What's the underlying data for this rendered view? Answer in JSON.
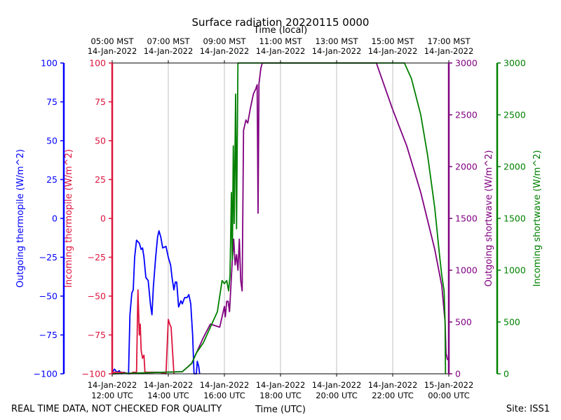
{
  "chart_data": {
    "type": "line",
    "title": "Surface radiation 20220115 0000",
    "top_axis_label": "Time (local)",
    "xlabel": "Time (UTC)",
    "footer_left": "REAL TIME DATA, NOT CHECKED FOR QUALITY",
    "footer_right": "Site: ISS1",
    "x_range": [
      "2022-01-14 12:00",
      "2022-01-15 00:00"
    ],
    "grid": true,
    "bottom_ticks": [
      {
        "x": "2022-01-14 12:00",
        "line1": "14-Jan-2022",
        "line2": "12:00 UTC"
      },
      {
        "x": "2022-01-14 14:00",
        "line1": "14-Jan-2022",
        "line2": "14:00 UTC"
      },
      {
        "x": "2022-01-14 16:00",
        "line1": "14-Jan-2022",
        "line2": "16:00 UTC"
      },
      {
        "x": "2022-01-14 18:00",
        "line1": "14-Jan-2022",
        "line2": "18:00 UTC"
      },
      {
        "x": "2022-01-14 20:00",
        "line1": "14-Jan-2022",
        "line2": "20:00 UTC"
      },
      {
        "x": "2022-01-14 22:00",
        "line1": "14-Jan-2022",
        "line2": "22:00 UTC"
      },
      {
        "x": "2022-01-15 00:00",
        "line1": "15-Jan-2022",
        "line2": "00:00 UTC"
      }
    ],
    "top_ticks": [
      {
        "x": "2022-01-14 12:00",
        "line1": "05:00 MST",
        "line2": "14-Jan-2022"
      },
      {
        "x": "2022-01-14 14:00",
        "line1": "07:00 MST",
        "line2": "14-Jan-2022"
      },
      {
        "x": "2022-01-14 16:00",
        "line1": "09:00 MST",
        "line2": "14-Jan-2022"
      },
      {
        "x": "2022-01-14 18:00",
        "line1": "11:00 MST",
        "line2": "14-Jan-2022"
      },
      {
        "x": "2022-01-14 20:00",
        "line1": "13:00 MST",
        "line2": "14-Jan-2022"
      },
      {
        "x": "2022-01-14 22:00",
        "line1": "15:00 MST",
        "line2": "14-Jan-2022"
      },
      {
        "x": "2022-01-15 00:00",
        "line1": "17:00 MST",
        "line2": "14-Jan-2022"
      }
    ],
    "axes": {
      "outgoing_thermopile": {
        "label": "Outgoing thermopile (W/m^2)",
        "color": "#0000ff",
        "ylim": [
          -100,
          100
        ],
        "ticks": [
          "-100",
          "-75",
          "-50",
          "-25",
          "0",
          "25",
          "50",
          "75",
          "100"
        ]
      },
      "incoming_thermopile": {
        "label": "Incoming thermopile (W/m^2)",
        "color": "#dc143c",
        "ylim": [
          -100,
          100
        ],
        "ticks": [
          "-100",
          "-75",
          "-50",
          "-25",
          "0",
          "25",
          "50",
          "75",
          "100"
        ]
      },
      "outgoing_shortwave": {
        "label": "Outgoing shortwave (W/m^2)",
        "color": "#800080",
        "ylim": [
          0,
          3000
        ],
        "ticks": [
          "0",
          "500",
          "1000",
          "1500",
          "2000",
          "2500",
          "3000"
        ]
      },
      "incoming_shortwave": {
        "label": "Incoming shortwave (W/m^2)",
        "color": "#008000",
        "ylim": [
          0,
          3000
        ],
        "ticks": [
          "0",
          "500",
          "1000",
          "1500",
          "2000",
          "2500",
          "3000"
        ]
      }
    },
    "series": [
      {
        "axis": "outgoing_thermopile",
        "points": [
          [
            "2022-01-14 12:00",
            -99
          ],
          [
            "2022-01-14 12:05",
            -97
          ],
          [
            "2022-01-14 12:10",
            -99
          ],
          [
            "2022-01-14 12:15",
            -98
          ],
          [
            "2022-01-14 12:20",
            -100
          ],
          [
            "2022-01-14 12:25",
            -99
          ],
          [
            "2022-01-14 12:35",
            -100
          ],
          [
            "2022-01-14 12:38",
            -62
          ],
          [
            "2022-01-14 12:42",
            -48
          ],
          [
            "2022-01-14 12:45",
            -46
          ],
          [
            "2022-01-14 12:48",
            -25
          ],
          [
            "2022-01-14 12:52",
            -14
          ],
          [
            "2022-01-14 12:58",
            -16
          ],
          [
            "2022-01-14 13:02",
            -20
          ],
          [
            "2022-01-14 13:05",
            -19
          ],
          [
            "2022-01-14 13:08",
            -25
          ],
          [
            "2022-01-14 13:12",
            -38
          ],
          [
            "2022-01-14 13:17",
            -40
          ],
          [
            "2022-01-14 13:22",
            -56
          ],
          [
            "2022-01-14 13:25",
            -62
          ],
          [
            "2022-01-14 13:28",
            -44
          ],
          [
            "2022-01-14 13:33",
            -25
          ],
          [
            "2022-01-14 13:37",
            -12
          ],
          [
            "2022-01-14 13:40",
            -8
          ],
          [
            "2022-01-14 13:44",
            -12
          ],
          [
            "2022-01-14 13:48",
            -19
          ],
          [
            "2022-01-14 13:55",
            -18
          ],
          [
            "2022-01-14 14:00",
            -25
          ],
          [
            "2022-01-14 14:05",
            -30
          ],
          [
            "2022-01-14 14:08",
            -38
          ],
          [
            "2022-01-14 14:12",
            -46
          ],
          [
            "2022-01-14 14:15",
            -41
          ],
          [
            "2022-01-14 14:18",
            -41
          ],
          [
            "2022-01-14 14:22",
            -57
          ],
          [
            "2022-01-14 14:27",
            -53
          ],
          [
            "2022-01-14 14:30",
            -55
          ],
          [
            "2022-01-14 14:35",
            -51
          ],
          [
            "2022-01-14 14:40",
            -51
          ],
          [
            "2022-01-14 14:44",
            -49
          ],
          [
            "2022-01-14 14:48",
            -55
          ],
          [
            "2022-01-14 14:52",
            -75
          ],
          [
            "2022-01-14 14:55",
            -100
          ],
          [
            "2022-01-14 15:00",
            -100
          ],
          [
            "2022-01-14 15:02",
            -92
          ],
          [
            "2022-01-14 15:05",
            -95
          ],
          [
            "2022-01-14 15:07",
            -100
          ]
        ]
      },
      {
        "axis": "incoming_thermopile",
        "points": [
          [
            "2022-01-14 12:00",
            -99
          ],
          [
            "2022-01-14 12:20",
            -99
          ],
          [
            "2022-01-14 12:38",
            -100
          ],
          [
            "2022-01-14 12:45",
            -99
          ],
          [
            "2022-01-14 12:52",
            -99
          ],
          [
            "2022-01-14 12:55",
            -46
          ],
          [
            "2022-01-14 12:58",
            -75
          ],
          [
            "2022-01-14 13:00",
            -68
          ],
          [
            "2022-01-14 13:02",
            -85
          ],
          [
            "2022-01-14 13:05",
            -90
          ],
          [
            "2022-01-14 13:08",
            -88
          ],
          [
            "2022-01-14 13:10",
            -99
          ],
          [
            "2022-01-14 13:25",
            -99
          ],
          [
            "2022-01-14 13:40",
            -99
          ],
          [
            "2022-01-14 13:55",
            -100
          ],
          [
            "2022-01-14 14:00",
            -65
          ],
          [
            "2022-01-14 14:03",
            -68
          ],
          [
            "2022-01-14 14:06",
            -70
          ],
          [
            "2022-01-14 14:09",
            -85
          ],
          [
            "2022-01-14 14:12",
            -100
          ]
        ]
      },
      {
        "axis": "outgoing_shortwave",
        "points": [
          [
            "2022-01-14 12:00",
            0
          ],
          [
            "2022-01-14 14:30",
            20
          ],
          [
            "2022-01-14 14:50",
            100
          ],
          [
            "2022-01-14 15:00",
            200
          ],
          [
            "2022-01-14 15:15",
            350
          ],
          [
            "2022-01-14 15:30",
            480
          ],
          [
            "2022-01-14 15:50",
            450
          ],
          [
            "2022-01-14 16:00",
            650
          ],
          [
            "2022-01-14 16:02",
            550
          ],
          [
            "2022-01-14 16:05",
            700
          ],
          [
            "2022-01-14 16:08",
            700
          ],
          [
            "2022-01-14 16:11",
            600
          ],
          [
            "2022-01-14 16:17",
            1100
          ],
          [
            "2022-01-14 16:20",
            1300
          ],
          [
            "2022-01-14 16:23",
            1050
          ],
          [
            "2022-01-14 16:26",
            1150
          ],
          [
            "2022-01-14 16:29",
            1000
          ],
          [
            "2022-01-14 16:32",
            1300
          ],
          [
            "2022-01-14 16:35",
            900
          ],
          [
            "2022-01-14 16:38",
            800
          ],
          [
            "2022-01-14 16:41",
            2350
          ],
          [
            "2022-01-14 16:46",
            2450
          ],
          [
            "2022-01-14 16:50",
            2420
          ],
          [
            "2022-01-14 16:55",
            2550
          ],
          [
            "2022-01-14 17:02",
            2700
          ],
          [
            "2022-01-14 17:07",
            2750
          ],
          [
            "2022-01-14 17:10",
            2790
          ],
          [
            "2022-01-14 17:12",
            1550
          ],
          [
            "2022-01-14 17:14",
            2800
          ],
          [
            "2022-01-14 17:18",
            2950
          ],
          [
            "2022-01-14 17:21",
            3000
          ],
          [
            "2022-01-14 21:25",
            3000
          ],
          [
            "2022-01-14 22:00",
            2550
          ],
          [
            "2022-01-14 22:30",
            2200
          ],
          [
            "2022-01-14 23:00",
            1750
          ],
          [
            "2022-01-14 23:30",
            1200
          ],
          [
            "2022-01-14 23:45",
            850
          ],
          [
            "2022-01-14 23:52",
            500
          ],
          [
            "2022-01-14 23:54",
            200
          ],
          [
            "2022-01-14 23:57",
            140
          ],
          [
            "2022-01-15 00:00",
            130
          ]
        ]
      },
      {
        "axis": "incoming_shortwave",
        "points": [
          [
            "2022-01-14 12:00",
            0
          ],
          [
            "2022-01-14 14:30",
            20
          ],
          [
            "2022-01-14 14:50",
            100
          ],
          [
            "2022-01-14 15:00",
            200
          ],
          [
            "2022-01-14 15:15",
            300
          ],
          [
            "2022-01-14 15:30",
            450
          ],
          [
            "2022-01-14 15:45",
            600
          ],
          [
            "2022-01-14 15:55",
            900
          ],
          [
            "2022-01-14 16:00",
            870
          ],
          [
            "2022-01-14 16:05",
            900
          ],
          [
            "2022-01-14 16:09",
            800
          ],
          [
            "2022-01-14 16:12",
            950
          ],
          [
            "2022-01-14 16:15",
            1750
          ],
          [
            "2022-01-14 16:17",
            1100
          ],
          [
            "2022-01-14 16:19",
            2200
          ],
          [
            "2022-01-14 16:21",
            1450
          ],
          [
            "2022-01-14 16:24",
            2700
          ],
          [
            "2022-01-14 16:26",
            1400
          ],
          [
            "2022-01-14 16:29",
            3000
          ],
          [
            "2022-01-14 17:18",
            3000
          ],
          [
            "2022-01-14 17:21",
            3000
          ],
          [
            "2022-01-14 22:25",
            3000
          ],
          [
            "2022-01-14 22:40",
            2850
          ],
          [
            "2022-01-14 23:00",
            2500
          ],
          [
            "2022-01-14 23:15",
            2100
          ],
          [
            "2022-01-14 23:30",
            1600
          ],
          [
            "2022-01-14 23:40",
            1150
          ],
          [
            "2022-01-14 23:45",
            950
          ],
          [
            "2022-01-14 23:50",
            800
          ],
          [
            "2022-01-14 23:52",
            500
          ],
          [
            "2022-01-14 23:53",
            0
          ]
        ]
      }
    ]
  }
}
